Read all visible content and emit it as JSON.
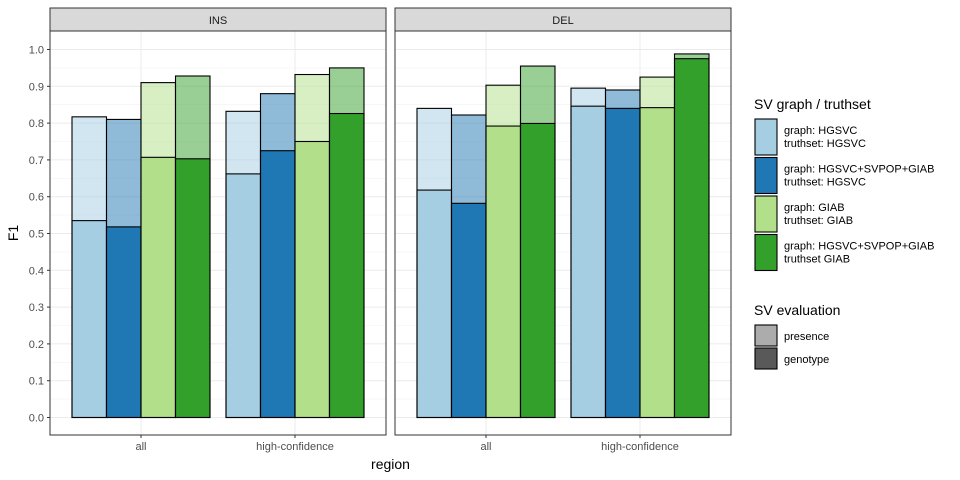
{
  "chart_data": {
    "type": "bar",
    "xlabel": "region",
    "ylabel": "F1",
    "ylim": [
      0,
      1.0
    ],
    "yticks": [
      "0.0",
      "0.1",
      "0.2",
      "0.3",
      "0.4",
      "0.5",
      "0.6",
      "0.7",
      "0.8",
      "0.9",
      "1.0"
    ],
    "grid": true,
    "legend_position": "right",
    "categories": [
      "all",
      "high-confidence"
    ],
    "panels": [
      {
        "name": "INS",
        "series": [
          {
            "key": "hgsvc_hgsvc",
            "presence": [
              0.817,
              0.832
            ],
            "genotype": [
              0.535,
              0.662
            ]
          },
          {
            "key": "all_hgsvc",
            "presence": [
              0.81,
              0.88
            ],
            "genotype": [
              0.518,
              0.725
            ]
          },
          {
            "key": "giab_giab",
            "presence": [
              0.91,
              0.932
            ],
            "genotype": [
              0.707,
              0.75
            ]
          },
          {
            "key": "all_giab",
            "presence": [
              0.928,
              0.95
            ],
            "genotype": [
              0.703,
              0.826
            ]
          }
        ]
      },
      {
        "name": "DEL",
        "series": [
          {
            "key": "hgsvc_hgsvc",
            "presence": [
              0.84,
              0.895
            ],
            "genotype": [
              0.618,
              0.846
            ]
          },
          {
            "key": "all_hgsvc",
            "presence": [
              0.822,
              0.89
            ],
            "genotype": [
              0.582,
              0.84
            ]
          },
          {
            "key": "giab_giab",
            "presence": [
              0.903,
              0.925
            ],
            "genotype": [
              0.792,
              0.842
            ]
          },
          {
            "key": "all_giab",
            "presence": [
              0.955,
              0.988
            ],
            "genotype": [
              0.799,
              0.975
            ]
          }
        ]
      }
    ],
    "legend_fill": {
      "title": "SV graph / truthset",
      "entries": [
        {
          "key": "hgsvc_hgsvc",
          "line1": "graph: HGSVC",
          "line2": "truthset: HGSVC",
          "color": "#a6cee3"
        },
        {
          "key": "all_hgsvc",
          "line1": "graph: HGSVC+SVPOP+GIAB",
          "line2": "truthset: HGSVC",
          "color": "#1f78b4"
        },
        {
          "key": "giab_giab",
          "line1": "graph: GIAB",
          "line2": "truthset: GIAB",
          "color": "#b2df8a"
        },
        {
          "key": "all_giab",
          "line1": "graph: HGSVC+SVPOP+GIAB",
          "line2": "truthset GIAB",
          "color": "#33a02c"
        }
      ]
    },
    "legend_alpha": {
      "title": "SV evaluation",
      "entries": [
        {
          "label": "presence",
          "opacity": 0.5
        },
        {
          "label": "genotype",
          "opacity": 1.0
        }
      ]
    }
  }
}
